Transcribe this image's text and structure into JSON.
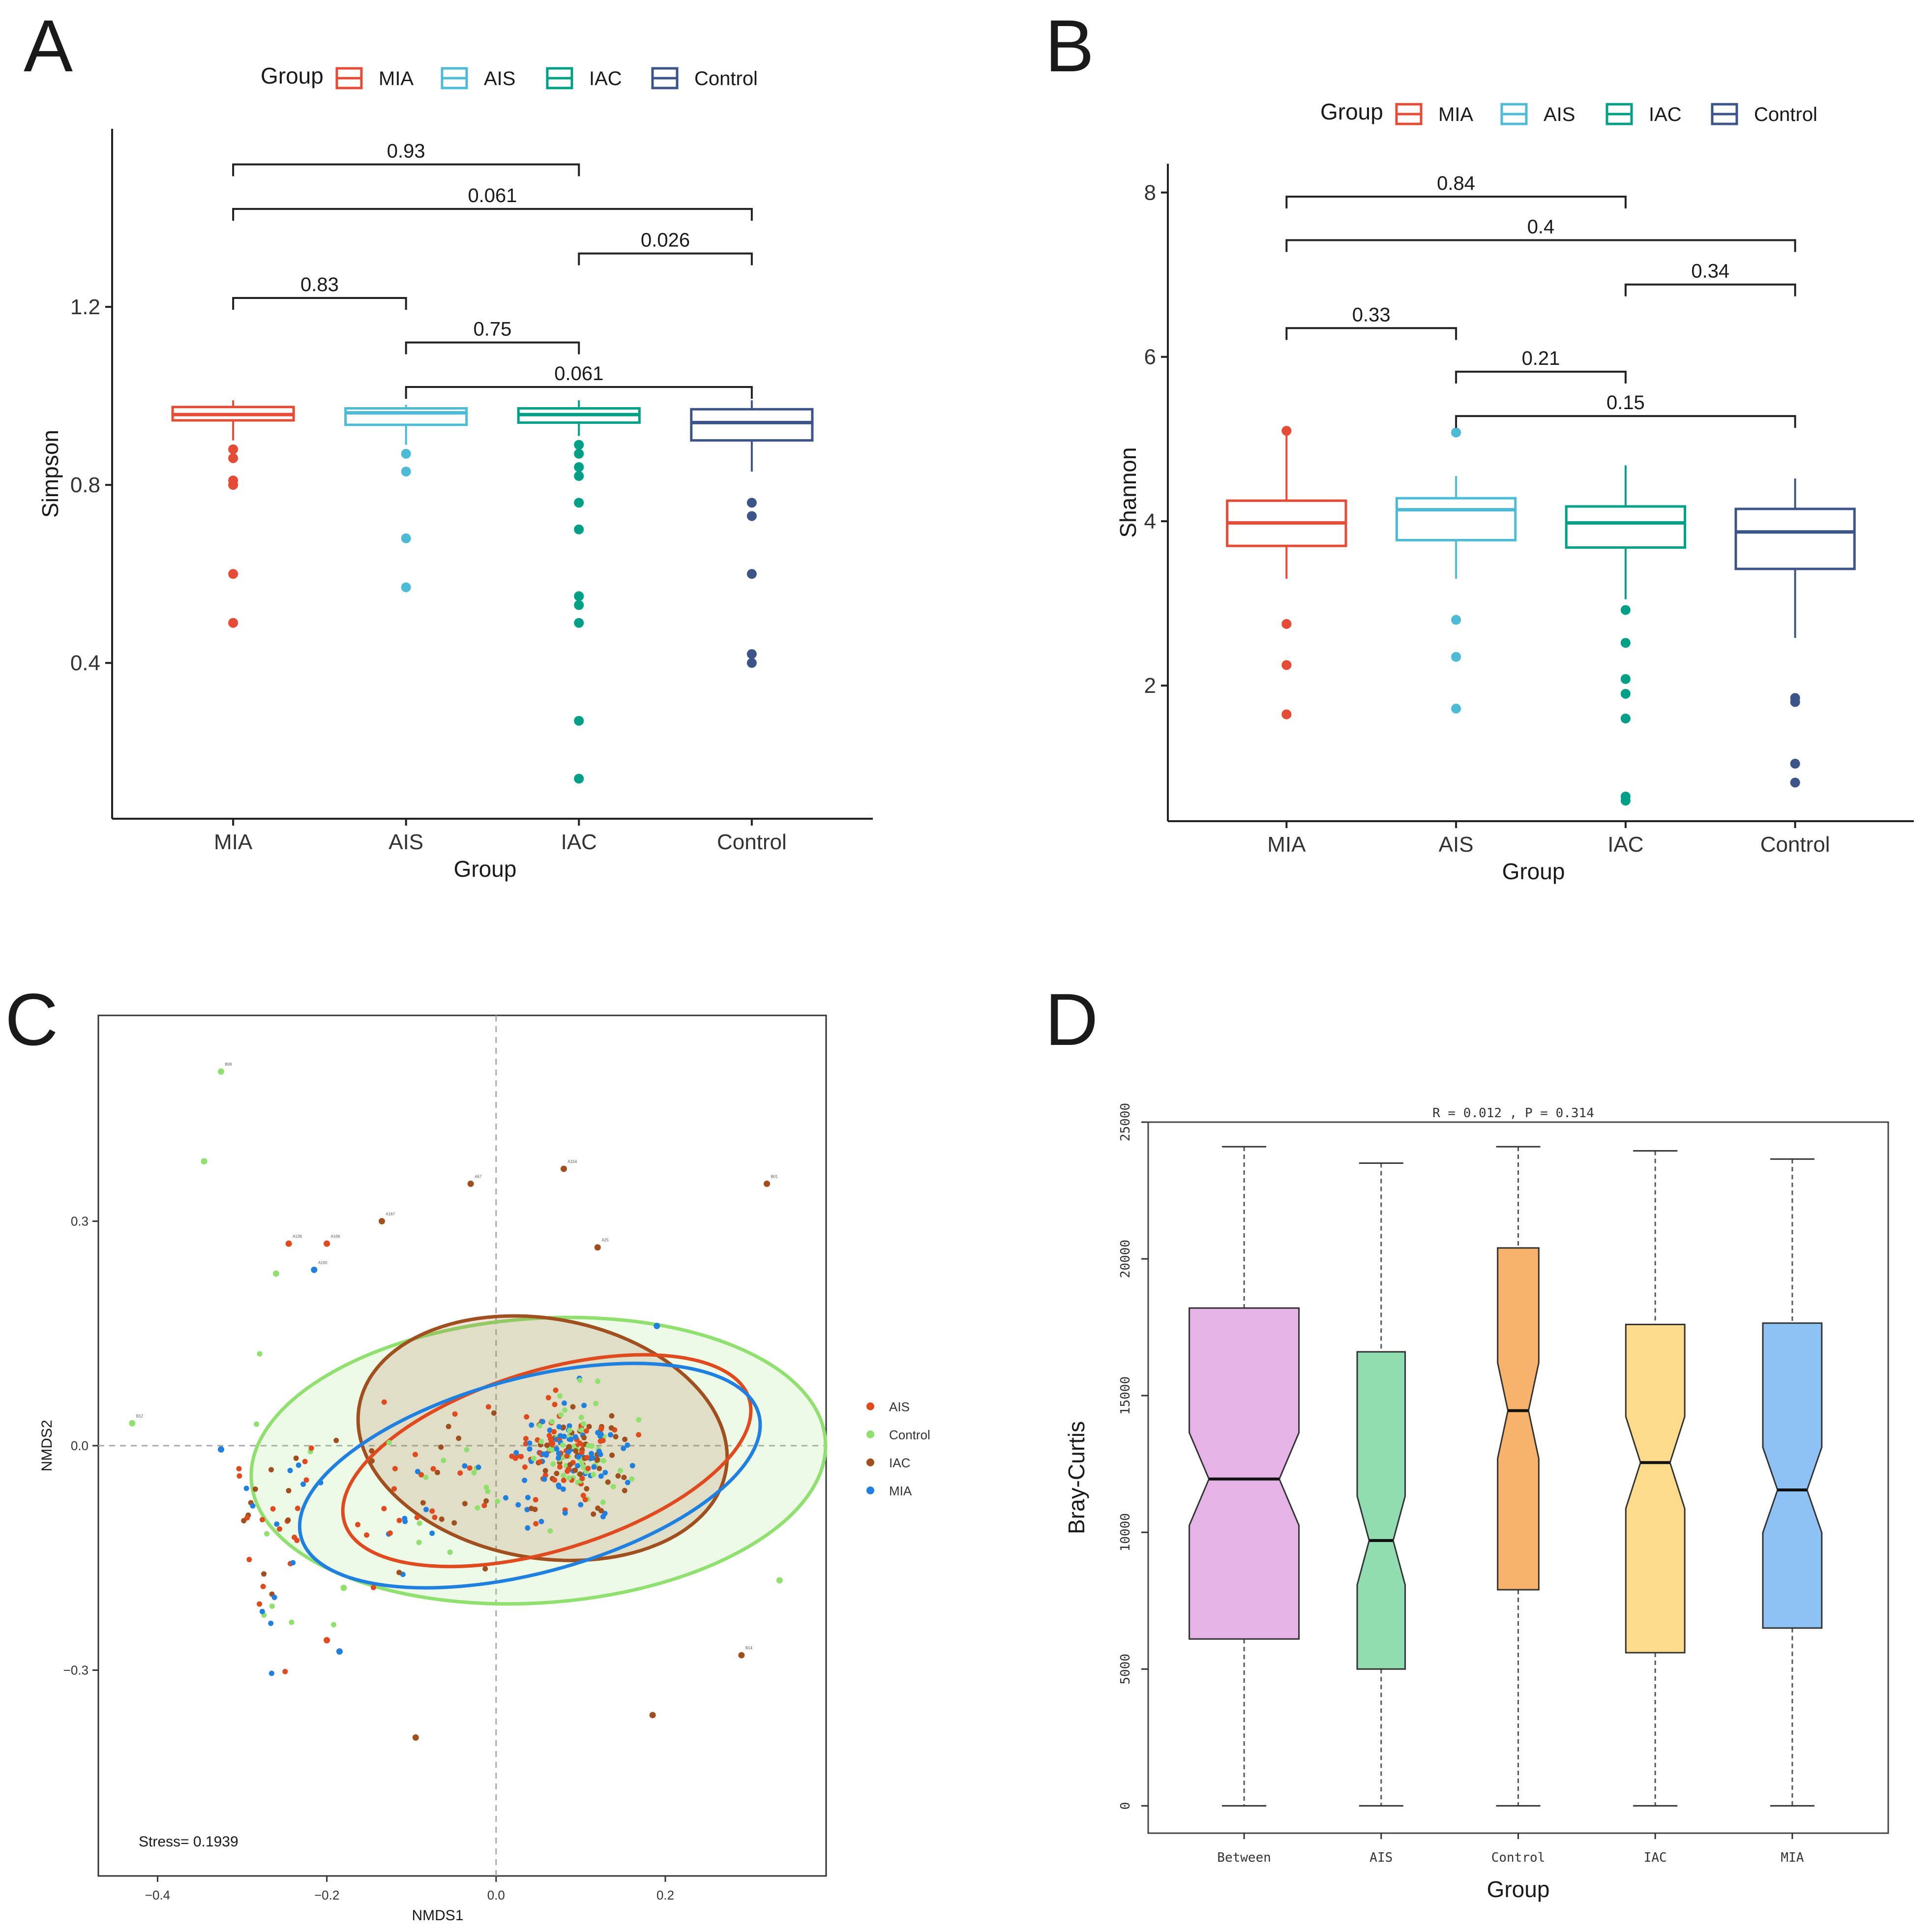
{
  "panels": {
    "A": "A",
    "B": "B",
    "C": "C",
    "D": "D"
  },
  "colors": {
    "MIA": "#E64B35",
    "AIS": "#4DBBD5",
    "IAC": "#00A087",
    "Control": "#3C5488",
    "nmds_AIS": "#E04A1F",
    "nmds_Control": "#90E070",
    "nmds_IAC": "#A0501E",
    "nmds_MIA": "#2080E0",
    "D_Between": "#E6B3E6",
    "D_AIS": "#8FDDB0",
    "D_Control": "#F7B36B",
    "D_IAC": "#FDDB8A",
    "D_MIA": "#8EC2F5"
  },
  "chart_data": [
    {
      "panel": "A",
      "type": "boxplot",
      "xlabel": "Group",
      "ylabel": "Simpson",
      "categories": [
        "MIA",
        "AIS",
        "IAC",
        "Control"
      ],
      "ylim": [
        0.05,
        1.6
      ],
      "yticks": [
        0.4,
        0.8,
        1.2
      ],
      "ytick_labels": [
        "0.4",
        "0.8",
        "1.2"
      ],
      "legend": {
        "title": "Group",
        "items": [
          "MIA",
          "AIS",
          "IAC",
          "Control"
        ],
        "position": "top"
      },
      "boxes": [
        {
          "group": "MIA",
          "q1": 0.945,
          "median": 0.958,
          "q3": 0.975,
          "whisker_low": 0.9,
          "whisker_high": 0.99,
          "outliers": [
            0.88,
            0.86,
            0.81,
            0.8,
            0.6,
            0.49
          ]
        },
        {
          "group": "AIS",
          "q1": 0.935,
          "median": 0.962,
          "q3": 0.972,
          "whisker_low": 0.89,
          "whisker_high": 0.98,
          "outliers": [
            0.87,
            0.83,
            0.68,
            0.57
          ]
        },
        {
          "group": "IAC",
          "q1": 0.94,
          "median": 0.958,
          "q3": 0.972,
          "whisker_low": 0.91,
          "whisker_high": 0.99,
          "outliers": [
            0.89,
            0.87,
            0.84,
            0.82,
            0.76,
            0.7,
            0.55,
            0.53,
            0.49,
            0.27,
            0.14
          ]
        },
        {
          "group": "Control",
          "q1": 0.9,
          "median": 0.94,
          "q3": 0.97,
          "whisker_low": 0.83,
          "whisker_high": 0.99,
          "outliers": [
            0.76,
            0.73,
            0.6,
            0.42,
            0.4
          ]
        }
      ],
      "comparisons": [
        {
          "from": "MIA",
          "to": "IAC",
          "label": "0.93",
          "y": 1.52
        },
        {
          "from": "MIA",
          "to": "Control",
          "label": "0.061",
          "y": 1.42
        },
        {
          "from": "IAC",
          "to": "Control",
          "label": "0.026",
          "y": 1.32
        },
        {
          "from": "MIA",
          "to": "AIS",
          "label": "0.83",
          "y": 1.22
        },
        {
          "from": "AIS",
          "to": "IAC",
          "label": "0.75",
          "y": 1.12
        },
        {
          "from": "AIS",
          "to": "Control",
          "label": "0.061",
          "y": 1.02
        }
      ]
    },
    {
      "panel": "B",
      "type": "boxplot",
      "xlabel": "Group",
      "ylabel": "Shannon",
      "categories": [
        "MIA",
        "AIS",
        "IAC",
        "Control"
      ],
      "ylim": [
        0.35,
        8.35
      ],
      "yticks": [
        2,
        4,
        6,
        8
      ],
      "ytick_labels": [
        "2",
        "4",
        "6",
        "8"
      ],
      "legend": {
        "title": "Group",
        "items": [
          "MIA",
          "AIS",
          "IAC",
          "Control"
        ],
        "position": "top"
      },
      "boxes": [
        {
          "group": "MIA",
          "q1": 3.7,
          "median": 3.98,
          "q3": 4.25,
          "whisker_low": 3.3,
          "whisker_high": 5.1,
          "outliers": [
            5.1,
            2.75,
            2.25,
            1.65
          ]
        },
        {
          "group": "AIS",
          "q1": 3.77,
          "median": 4.14,
          "q3": 4.28,
          "whisker_low": 3.3,
          "whisker_high": 4.55,
          "outliers": [
            5.08,
            2.8,
            2.35,
            1.72
          ]
        },
        {
          "group": "IAC",
          "q1": 3.68,
          "median": 3.98,
          "q3": 4.18,
          "whisker_low": 3.05,
          "whisker_high": 4.68,
          "outliers": [
            2.92,
            2.52,
            2.08,
            1.9,
            1.6,
            0.65,
            0.6
          ]
        },
        {
          "group": "Control",
          "q1": 3.42,
          "median": 3.87,
          "q3": 4.15,
          "whisker_low": 2.58,
          "whisker_high": 4.52,
          "outliers": [
            1.85,
            1.8,
            1.05,
            0.82
          ]
        }
      ],
      "comparisons": [
        {
          "from": "MIA",
          "to": "IAC",
          "label": "0.84",
          "y": 7.95
        },
        {
          "from": "MIA",
          "to": "Control",
          "label": "0.4",
          "y": 7.42
        },
        {
          "from": "IAC",
          "to": "Control",
          "label": "0.34",
          "y": 6.88
        },
        {
          "from": "MIA",
          "to": "AIS",
          "label": "0.33",
          "y": 6.35
        },
        {
          "from": "AIS",
          "to": "IAC",
          "label": "0.21",
          "y": 5.82
        },
        {
          "from": "AIS",
          "to": "Control",
          "label": "0.15",
          "y": 5.28
        }
      ]
    },
    {
      "panel": "C",
      "type": "scatter",
      "xlabel": "NMDS1",
      "ylabel": "NMDS2",
      "xlim": [
        -0.47,
        0.39
      ],
      "ylim": [
        -0.575,
        0.575
      ],
      "xticks": [
        -0.4,
        -0.2,
        0.0,
        0.2
      ],
      "xtick_labels": [
        "−0.4",
        "−0.2",
        "0.0",
        "0.2"
      ],
      "yticks": [
        -0.3,
        0.0,
        0.3
      ],
      "ytick_labels": [
        "−0.3",
        "0.0",
        "0.3"
      ],
      "stress_label": "Stress= 0.1939",
      "legend": {
        "items": [
          "AIS",
          "Control",
          "IAC",
          "MIA"
        ],
        "position": "right"
      },
      "ellipses": [
        {
          "group": "Control",
          "cx": 0.05,
          "cy": -0.02,
          "rx": 0.34,
          "ry": 0.19,
          "angle": 4,
          "fill": true
        },
        {
          "group": "IAC",
          "cx": 0.055,
          "cy": 0.01,
          "rx": 0.22,
          "ry": 0.16,
          "angle": -10,
          "fill": true
        },
        {
          "group": "AIS",
          "cx": 0.06,
          "cy": -0.02,
          "rx": 0.25,
          "ry": 0.12,
          "angle": 17,
          "fill": false
        },
        {
          "group": "MIA",
          "cx": 0.04,
          "cy": -0.04,
          "rx": 0.28,
          "ry": 0.13,
          "angle": 15,
          "fill": false
        }
      ],
      "labeled_points": [
        {
          "group": "Control",
          "x": -0.325,
          "y": 0.5,
          "label": "B06"
        },
        {
          "group": "Control",
          "x": -0.345,
          "y": 0.38,
          "label": ""
        },
        {
          "group": "Control",
          "x": -0.43,
          "y": 0.03,
          "label": "B12"
        },
        {
          "group": "Control",
          "x": -0.26,
          "y": 0.23,
          "label": ""
        },
        {
          "group": "Control",
          "x": 0.335,
          "y": -0.18,
          "label": ""
        },
        {
          "group": "IAC",
          "x": -0.03,
          "y": 0.35,
          "label": "A67"
        },
        {
          "group": "IAC",
          "x": 0.08,
          "y": 0.37,
          "label": "A154"
        },
        {
          "group": "IAC",
          "x": -0.135,
          "y": 0.3,
          "label": "A167"
        },
        {
          "group": "IAC",
          "x": 0.12,
          "y": 0.265,
          "label": "A25"
        },
        {
          "group": "IAC",
          "x": -0.095,
          "y": -0.39,
          "label": ""
        },
        {
          "group": "IAC",
          "x": 0.185,
          "y": -0.36,
          "label": ""
        },
        {
          "group": "AIS",
          "x": -0.245,
          "y": 0.27,
          "label": "A136"
        },
        {
          "group": "AIS",
          "x": -0.2,
          "y": 0.27,
          "label": "A106"
        },
        {
          "group": "MIA",
          "x": -0.215,
          "y": 0.235,
          "label": "A160"
        },
        {
          "group": "MIA",
          "x": 0.19,
          "y": 0.16,
          "label": ""
        },
        {
          "group": "MIA",
          "x": -0.325,
          "y": -0.005,
          "label": ""
        },
        {
          "group": "MIA",
          "x": -0.185,
          "y": -0.275,
          "label": ""
        },
        {
          "group": "AIS",
          "x": -0.2,
          "y": -0.26,
          "label": ""
        },
        {
          "group": "Control",
          "x": -0.18,
          "y": -0.19,
          "label": ""
        },
        {
          "group": "IAC",
          "x": 0.32,
          "y": 0.35,
          "label": "B01"
        },
        {
          "group": "IAC",
          "x": 0.29,
          "y": -0.28,
          "label": "B14"
        }
      ]
    },
    {
      "panel": "D",
      "type": "boxplot",
      "notched": true,
      "title": "R =  0.012 ,  P =  0.314",
      "xlabel": "Group",
      "ylabel": "Bray-Curtis",
      "categories": [
        "Between",
        "AIS",
        "Control",
        "IAC",
        "MIA"
      ],
      "ylim": [
        -1000,
        25000
      ],
      "yticks": [
        0,
        5000,
        10000,
        15000,
        20000,
        25000
      ],
      "ytick_labels": [
        "0",
        "5000",
        "10000",
        "15000",
        "20000",
        "25000"
      ],
      "boxes": [
        {
          "group": "Between",
          "q1": 6100,
          "median": 11950,
          "q3": 18200,
          "whisker_low": 0,
          "whisker_high": 24100,
          "width": 0.8
        },
        {
          "group": "AIS",
          "q1": 5000,
          "median": 9700,
          "q3": 16600,
          "whisker_low": 0,
          "whisker_high": 23500,
          "width": 0.35
        },
        {
          "group": "Control",
          "q1": 7900,
          "median": 14450,
          "q3": 20400,
          "whisker_low": 0,
          "whisker_high": 24100,
          "width": 0.3
        },
        {
          "group": "IAC",
          "q1": 5600,
          "median": 12550,
          "q3": 17600,
          "whisker_low": 0,
          "whisker_high": 23950,
          "width": 0.43
        },
        {
          "group": "MIA",
          "q1": 6500,
          "median": 11550,
          "q3": 17650,
          "whisker_low": 0,
          "whisker_high": 23650,
          "width": 0.43
        }
      ]
    }
  ]
}
